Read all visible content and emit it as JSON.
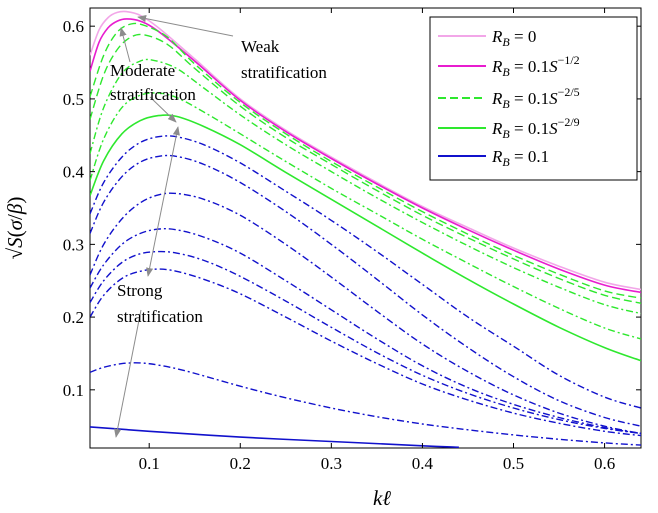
{
  "chart_data": {
    "type": "line",
    "xlabel": "kℓ",
    "ylabel": "√S(σ/β)",
    "xlim": [
      0.035,
      0.64
    ],
    "ylim": [
      0.02,
      0.625
    ],
    "xticks": [
      "0.1",
      "0.2",
      "0.3",
      "0.4",
      "0.5",
      "0.6"
    ],
    "yticks": [
      "0.1",
      "0.2",
      "0.3",
      "0.4",
      "0.5",
      "0.6"
    ],
    "grid": false,
    "legend_position": "top-right",
    "colors": {
      "pink": "#f2a6e8",
      "magenta": "#e81ccf",
      "green": "#2ee82e",
      "blue": "#1111cc"
    },
    "legend": [
      {
        "label": "R_B = 0",
        "color": "#f2a6e8",
        "dash": "solid"
      },
      {
        "label": "R_B = 0.1S^{-1/2}",
        "color": "#e81ccf",
        "dash": "solid"
      },
      {
        "label": "R_B = 0.1S^{-2/5}",
        "color": "#2ee82e",
        "dash": "dashed"
      },
      {
        "label": "R_B = 0.1S^{-2/9}",
        "color": "#2ee82e",
        "dash": "solid"
      },
      {
        "label": "R_B = 0.1",
        "color": "#1111cc",
        "dash": "solid"
      }
    ],
    "annotations": [
      {
        "text": [
          "Weak",
          "stratification"
        ]
      },
      {
        "text": [
          "Moderate",
          "stratification"
        ]
      },
      {
        "text": [
          "Strong",
          "stratification"
        ]
      }
    ],
    "series": [
      {
        "color": "#f2a6e8",
        "dash": "solid",
        "width": 1.6,
        "points": [
          [
            0.035,
            0.56
          ],
          [
            0.045,
            0.595
          ],
          [
            0.055,
            0.612
          ],
          [
            0.065,
            0.619
          ],
          [
            0.075,
            0.62
          ],
          [
            0.09,
            0.615
          ],
          [
            0.11,
            0.598
          ],
          [
            0.15,
            0.555
          ],
          [
            0.2,
            0.5
          ],
          [
            0.25,
            0.457
          ],
          [
            0.3,
            0.42
          ],
          [
            0.35,
            0.385
          ],
          [
            0.4,
            0.352
          ],
          [
            0.45,
            0.323
          ],
          [
            0.5,
            0.295
          ],
          [
            0.55,
            0.27
          ],
          [
            0.6,
            0.248
          ],
          [
            0.64,
            0.238
          ]
        ]
      },
      {
        "color": "#e81ccf",
        "dash": "solid",
        "width": 1.6,
        "points": [
          [
            0.035,
            0.538
          ],
          [
            0.045,
            0.578
          ],
          [
            0.055,
            0.598
          ],
          [
            0.065,
            0.607
          ],
          [
            0.075,
            0.61
          ],
          [
            0.09,
            0.607
          ],
          [
            0.11,
            0.593
          ],
          [
            0.15,
            0.552
          ],
          [
            0.2,
            0.498
          ],
          [
            0.25,
            0.455
          ],
          [
            0.3,
            0.418
          ],
          [
            0.35,
            0.383
          ],
          [
            0.4,
            0.35
          ],
          [
            0.45,
            0.32
          ],
          [
            0.5,
            0.292
          ],
          [
            0.55,
            0.266
          ],
          [
            0.6,
            0.244
          ],
          [
            0.64,
            0.234
          ]
        ]
      },
      {
        "color": "#2ee82e",
        "dash": "dashed",
        "width": 1.4,
        "points": [
          [
            0.035,
            0.503
          ],
          [
            0.05,
            0.56
          ],
          [
            0.065,
            0.592
          ],
          [
            0.08,
            0.603
          ],
          [
            0.095,
            0.601
          ],
          [
            0.12,
            0.585
          ],
          [
            0.15,
            0.548
          ],
          [
            0.2,
            0.495
          ],
          [
            0.25,
            0.452
          ],
          [
            0.3,
            0.414
          ],
          [
            0.35,
            0.379
          ],
          [
            0.4,
            0.345
          ],
          [
            0.45,
            0.314
          ],
          [
            0.5,
            0.285
          ],
          [
            0.55,
            0.259
          ],
          [
            0.6,
            0.236
          ],
          [
            0.64,
            0.226
          ]
        ]
      },
      {
        "color": "#2ee82e",
        "dash": "dashed",
        "width": 1.4,
        "points": [
          [
            0.035,
            0.472
          ],
          [
            0.05,
            0.533
          ],
          [
            0.065,
            0.568
          ],
          [
            0.08,
            0.585
          ],
          [
            0.095,
            0.588
          ],
          [
            0.12,
            0.575
          ],
          [
            0.15,
            0.542
          ],
          [
            0.2,
            0.49
          ],
          [
            0.25,
            0.447
          ],
          [
            0.3,
            0.41
          ],
          [
            0.35,
            0.374
          ],
          [
            0.4,
            0.34
          ],
          [
            0.45,
            0.309
          ],
          [
            0.5,
            0.28
          ],
          [
            0.55,
            0.253
          ],
          [
            0.6,
            0.23
          ],
          [
            0.64,
            0.219
          ]
        ]
      },
      {
        "color": "#2ee82e",
        "dash": "dashdot",
        "width": 1.4,
        "points": [
          [
            0.035,
            0.425
          ],
          [
            0.05,
            0.488
          ],
          [
            0.07,
            0.535
          ],
          [
            0.09,
            0.552
          ],
          [
            0.105,
            0.553
          ],
          [
            0.13,
            0.542
          ],
          [
            0.16,
            0.515
          ],
          [
            0.2,
            0.478
          ],
          [
            0.25,
            0.437
          ],
          [
            0.3,
            0.4
          ],
          [
            0.35,
            0.364
          ],
          [
            0.4,
            0.33
          ],
          [
            0.45,
            0.298
          ],
          [
            0.5,
            0.268
          ],
          [
            0.55,
            0.241
          ],
          [
            0.6,
            0.217
          ],
          [
            0.64,
            0.205
          ]
        ]
      },
      {
        "color": "#2ee82e",
        "dash": "dashdot",
        "width": 1.4,
        "points": [
          [
            0.035,
            0.388
          ],
          [
            0.05,
            0.445
          ],
          [
            0.07,
            0.488
          ],
          [
            0.09,
            0.505
          ],
          [
            0.11,
            0.508
          ],
          [
            0.13,
            0.502
          ],
          [
            0.16,
            0.482
          ],
          [
            0.2,
            0.452
          ],
          [
            0.25,
            0.414
          ],
          [
            0.3,
            0.377
          ],
          [
            0.35,
            0.342
          ],
          [
            0.4,
            0.307
          ],
          [
            0.45,
            0.274
          ],
          [
            0.5,
            0.242
          ],
          [
            0.55,
            0.212
          ],
          [
            0.6,
            0.185
          ],
          [
            0.64,
            0.17
          ]
        ]
      },
      {
        "color": "#2ee82e",
        "dash": "solid",
        "width": 1.6,
        "points": [
          [
            0.035,
            0.367
          ],
          [
            0.05,
            0.415
          ],
          [
            0.07,
            0.452
          ],
          [
            0.09,
            0.47
          ],
          [
            0.11,
            0.477
          ],
          [
            0.13,
            0.476
          ],
          [
            0.16,
            0.462
          ],
          [
            0.2,
            0.437
          ],
          [
            0.25,
            0.399
          ],
          [
            0.3,
            0.362
          ],
          [
            0.35,
            0.325
          ],
          [
            0.4,
            0.288
          ],
          [
            0.45,
            0.252
          ],
          [
            0.5,
            0.218
          ],
          [
            0.55,
            0.186
          ],
          [
            0.6,
            0.158
          ],
          [
            0.64,
            0.14
          ]
        ]
      },
      {
        "color": "#1111cc",
        "dash": "dashdot",
        "width": 1.4,
        "points": [
          [
            0.035,
            0.342
          ],
          [
            0.05,
            0.385
          ],
          [
            0.07,
            0.42
          ],
          [
            0.09,
            0.44
          ],
          [
            0.11,
            0.448
          ],
          [
            0.13,
            0.448
          ],
          [
            0.16,
            0.437
          ],
          [
            0.2,
            0.412
          ],
          [
            0.25,
            0.373
          ],
          [
            0.3,
            0.333
          ],
          [
            0.35,
            0.29
          ],
          [
            0.4,
            0.245
          ],
          [
            0.45,
            0.2
          ],
          [
            0.5,
            0.16
          ],
          [
            0.55,
            0.12
          ],
          [
            0.6,
            0.09
          ],
          [
            0.64,
            0.075
          ]
        ]
      },
      {
        "color": "#1111cc",
        "dash": "dashdot",
        "width": 1.4,
        "points": [
          [
            0.035,
            0.315
          ],
          [
            0.05,
            0.358
          ],
          [
            0.07,
            0.393
          ],
          [
            0.09,
            0.413
          ],
          [
            0.11,
            0.421
          ],
          [
            0.13,
            0.421
          ],
          [
            0.16,
            0.41
          ],
          [
            0.2,
            0.385
          ],
          [
            0.25,
            0.345
          ],
          [
            0.3,
            0.3
          ],
          [
            0.35,
            0.252
          ],
          [
            0.4,
            0.203
          ],
          [
            0.45,
            0.158
          ],
          [
            0.5,
            0.118
          ],
          [
            0.55,
            0.085
          ],
          [
            0.6,
            0.062
          ],
          [
            0.64,
            0.05
          ]
        ]
      },
      {
        "color": "#1111cc",
        "dash": "dashdot",
        "width": 1.4,
        "points": [
          [
            0.035,
            0.258
          ],
          [
            0.05,
            0.3
          ],
          [
            0.07,
            0.335
          ],
          [
            0.09,
            0.357
          ],
          [
            0.11,
            0.368
          ],
          [
            0.13,
            0.37
          ],
          [
            0.16,
            0.362
          ],
          [
            0.2,
            0.34
          ],
          [
            0.25,
            0.3
          ],
          [
            0.3,
            0.255
          ],
          [
            0.35,
            0.208
          ],
          [
            0.4,
            0.163
          ],
          [
            0.45,
            0.125
          ],
          [
            0.5,
            0.093
          ],
          [
            0.55,
            0.068
          ],
          [
            0.6,
            0.05
          ],
          [
            0.64,
            0.04
          ]
        ]
      },
      {
        "color": "#1111cc",
        "dash": "dashdot",
        "width": 1.4,
        "points": [
          [
            0.035,
            0.24
          ],
          [
            0.05,
            0.272
          ],
          [
            0.07,
            0.3
          ],
          [
            0.09,
            0.315
          ],
          [
            0.11,
            0.321
          ],
          [
            0.13,
            0.32
          ],
          [
            0.16,
            0.31
          ],
          [
            0.2,
            0.288
          ],
          [
            0.25,
            0.25
          ],
          [
            0.3,
            0.21
          ],
          [
            0.35,
            0.17
          ],
          [
            0.4,
            0.133
          ],
          [
            0.45,
            0.103
          ],
          [
            0.5,
            0.08
          ],
          [
            0.55,
            0.062
          ],
          [
            0.6,
            0.048
          ],
          [
            0.64,
            0.04
          ]
        ]
      },
      {
        "color": "#1111cc",
        "dash": "dashdot",
        "width": 1.4,
        "points": [
          [
            0.035,
            0.22
          ],
          [
            0.05,
            0.25
          ],
          [
            0.07,
            0.275
          ],
          [
            0.09,
            0.287
          ],
          [
            0.11,
            0.29
          ],
          [
            0.13,
            0.288
          ],
          [
            0.16,
            0.278
          ],
          [
            0.2,
            0.256
          ],
          [
            0.25,
            0.222
          ],
          [
            0.3,
            0.186
          ],
          [
            0.35,
            0.151
          ],
          [
            0.4,
            0.12
          ],
          [
            0.45,
            0.095
          ],
          [
            0.5,
            0.075
          ],
          [
            0.55,
            0.059
          ],
          [
            0.6,
            0.047
          ],
          [
            0.64,
            0.04
          ]
        ]
      },
      {
        "color": "#1111cc",
        "dash": "dashdot",
        "width": 1.4,
        "points": [
          [
            0.035,
            0.2
          ],
          [
            0.05,
            0.23
          ],
          [
            0.07,
            0.253
          ],
          [
            0.09,
            0.263
          ],
          [
            0.11,
            0.266
          ],
          [
            0.13,
            0.263
          ],
          [
            0.16,
            0.252
          ],
          [
            0.2,
            0.232
          ],
          [
            0.25,
            0.2
          ],
          [
            0.3,
            0.167
          ],
          [
            0.35,
            0.136
          ],
          [
            0.4,
            0.108
          ],
          [
            0.45,
            0.086
          ],
          [
            0.5,
            0.068
          ],
          [
            0.55,
            0.054
          ],
          [
            0.6,
            0.043
          ],
          [
            0.64,
            0.037
          ]
        ]
      },
      {
        "color": "#1111cc",
        "dash": "dashdot",
        "width": 1.4,
        "points": [
          [
            0.035,
            0.124
          ],
          [
            0.05,
            0.131
          ],
          [
            0.07,
            0.136
          ],
          [
            0.09,
            0.137
          ],
          [
            0.11,
            0.134
          ],
          [
            0.14,
            0.126
          ],
          [
            0.2,
            0.105
          ],
          [
            0.25,
            0.089
          ],
          [
            0.3,
            0.075
          ],
          [
            0.35,
            0.063
          ],
          [
            0.4,
            0.053
          ],
          [
            0.45,
            0.045
          ],
          [
            0.5,
            0.038
          ],
          [
            0.55,
            0.032
          ],
          [
            0.6,
            0.027
          ],
          [
            0.64,
            0.024
          ]
        ]
      },
      {
        "color": "#1111cc",
        "dash": "solid",
        "width": 1.6,
        "points": [
          [
            0.035,
            0.049
          ],
          [
            0.1,
            0.043
          ],
          [
            0.2,
            0.035
          ],
          [
            0.3,
            0.029
          ],
          [
            0.4,
            0.023
          ],
          [
            0.44,
            0.021
          ]
        ]
      }
    ]
  }
}
